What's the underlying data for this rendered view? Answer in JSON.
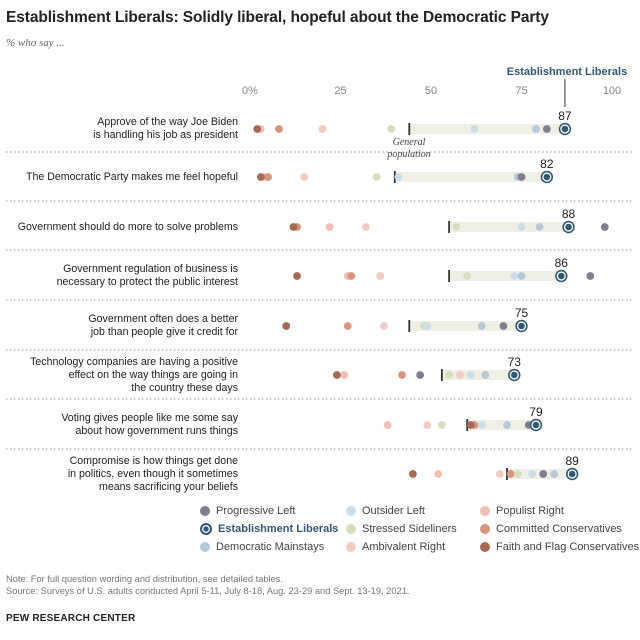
{
  "title": "Establishment Liberals: Solidly liberal, hopeful about the Democratic Party",
  "subtitle": "% who say ...",
  "highlight_label": "Establishment Liberals",
  "general_population_label_line1": "General",
  "general_population_label_line2": "population",
  "note": "Note: For full question wording and distribution, see detailed tables.",
  "source": "Source: Surveys of U.S. adults conducted April 5-11, July 8-18, Aug. 23-29 and Sept. 13-19, 2021.",
  "org": "PEW RESEARCH CENTER",
  "colors": {
    "progressive_left": "#7f7f8e",
    "establishment_liberals": "#355872",
    "democratic_mainstays": "#b7c9d6",
    "outsider_left": "#cfdde8",
    "stressed_sideliners": "#d5dfc0",
    "ambivalent_right": "#f2cbc3",
    "populist_right": "#f1c0b5",
    "committed_conservatives": "#d8957e",
    "faith_flag_conservatives": "#a46a56",
    "range_bar": "#efefe6",
    "general_population_marker": "#333333"
  },
  "legend": [
    {
      "key": "progressive_left",
      "label": "Progressive Left"
    },
    {
      "key": "outsider_left",
      "label": "Outsider Left"
    },
    {
      "key": "populist_right",
      "label": "Populist Right"
    },
    {
      "key": "establishment_liberals",
      "label": "Establishment Liberals"
    },
    {
      "key": "stressed_sideliners",
      "label": "Stressed Sideliners"
    },
    {
      "key": "committed_conservatives",
      "label": "Committed Conservatives"
    },
    {
      "key": "democratic_mainstays",
      "label": "Democratic Mainstays"
    },
    {
      "key": "ambivalent_right",
      "label": "Ambivalent Right"
    },
    {
      "key": "faith_flag_conservatives",
      "label": "Faith and Flag Conservatives"
    }
  ],
  "chart_data": {
    "type": "scatter",
    "title": "Establishment Liberals: Solidly liberal, hopeful about the Democratic Party",
    "subtitle": "% who say ...",
    "xlim": [
      0,
      100
    ],
    "xticks": [
      0,
      25,
      50,
      75,
      100
    ],
    "xtick_labels": [
      "0%",
      "25",
      "50",
      "75",
      "100"
    ],
    "rows": [
      {
        "label_lines": [
          "Approve of the way Joe Biden",
          "is handling his job as president"
        ],
        "general": 44,
        "highlight": 87,
        "values": {
          "progressive_left": 82,
          "establishment_liberals": 87,
          "democratic_mainstays": 79,
          "outsider_left": 62,
          "stressed_sideliners": 39,
          "ambivalent_right": 20,
          "populist_right": 3,
          "committed_conservatives": 8,
          "faith_flag_conservatives": 2
        }
      },
      {
        "label_lines": [
          "The Democratic Party makes me feel hopeful"
        ],
        "general": 40,
        "highlight": 82,
        "values": {
          "progressive_left": 75,
          "establishment_liberals": 82,
          "democratic_mainstays": 74,
          "outsider_left": 41,
          "stressed_sideliners": 35,
          "ambivalent_right": 15,
          "populist_right": 4,
          "committed_conservatives": 5,
          "faith_flag_conservatives": 3
        }
      },
      {
        "label_lines": [
          "Government should do more to solve problems"
        ],
        "general": 55,
        "highlight": 88,
        "values": {
          "progressive_left": 98,
          "establishment_liberals": 88,
          "democratic_mainstays": 80,
          "outsider_left": 75,
          "stressed_sideliners": 57,
          "ambivalent_right": 32,
          "populist_right": 22,
          "committed_conservatives": 13,
          "faith_flag_conservatives": 12
        }
      },
      {
        "label_lines": [
          "Government regulation of business is",
          "necessary to protect the public interest"
        ],
        "general": 55,
        "highlight": 86,
        "values": {
          "progressive_left": 94,
          "establishment_liberals": 86,
          "democratic_mainstays": 75,
          "outsider_left": 73,
          "stressed_sideliners": 60,
          "ambivalent_right": 36,
          "populist_right": 27,
          "committed_conservatives": 28,
          "faith_flag_conservatives": 13
        }
      },
      {
        "label_lines": [
          "Government often does a better",
          "job than people give it credit for"
        ],
        "general": 44,
        "highlight": 75,
        "values": {
          "progressive_left": 70,
          "establishment_liberals": 75,
          "democratic_mainstays": 64,
          "outsider_left": 49,
          "stressed_sideliners": 48,
          "ambivalent_right": 37,
          "populist_right": 10,
          "committed_conservatives": 27,
          "faith_flag_conservatives": 10
        }
      },
      {
        "label_lines": [
          "Technology companies are having a positive",
          "effect on the way things are going in",
          "the country these days"
        ],
        "general": 53,
        "highlight": 73,
        "values": {
          "progressive_left": 47,
          "establishment_liberals": 73,
          "democratic_mainstays": 65,
          "outsider_left": 61,
          "stressed_sideliners": 55,
          "ambivalent_right": 58,
          "populist_right": 26,
          "committed_conservatives": 42,
          "faith_flag_conservatives": 24
        }
      },
      {
        "label_lines": [
          "Voting gives people like me some say",
          "about how government runs things"
        ],
        "general": 60,
        "highlight": 79,
        "values": {
          "progressive_left": 77,
          "establishment_liberals": 79,
          "democratic_mainstays": 71,
          "outsider_left": 64,
          "stressed_sideliners": 53,
          "ambivalent_right": 49,
          "populist_right": 38,
          "committed_conservatives": 62,
          "faith_flag_conservatives": 61
        }
      },
      {
        "label_lines": [
          "Compromise is how things get done",
          "in politics, even though it sometimes",
          "means sacrificing your beliefs"
        ],
        "general": 71,
        "highlight": 89,
        "values": {
          "progressive_left": 81,
          "establishment_liberals": 89,
          "democratic_mainstays": 84,
          "outsider_left": 78,
          "stressed_sideliners": 74,
          "ambivalent_right": 69,
          "populist_right": 52,
          "committed_conservatives": 72,
          "faith_flag_conservatives": 45
        }
      }
    ]
  }
}
